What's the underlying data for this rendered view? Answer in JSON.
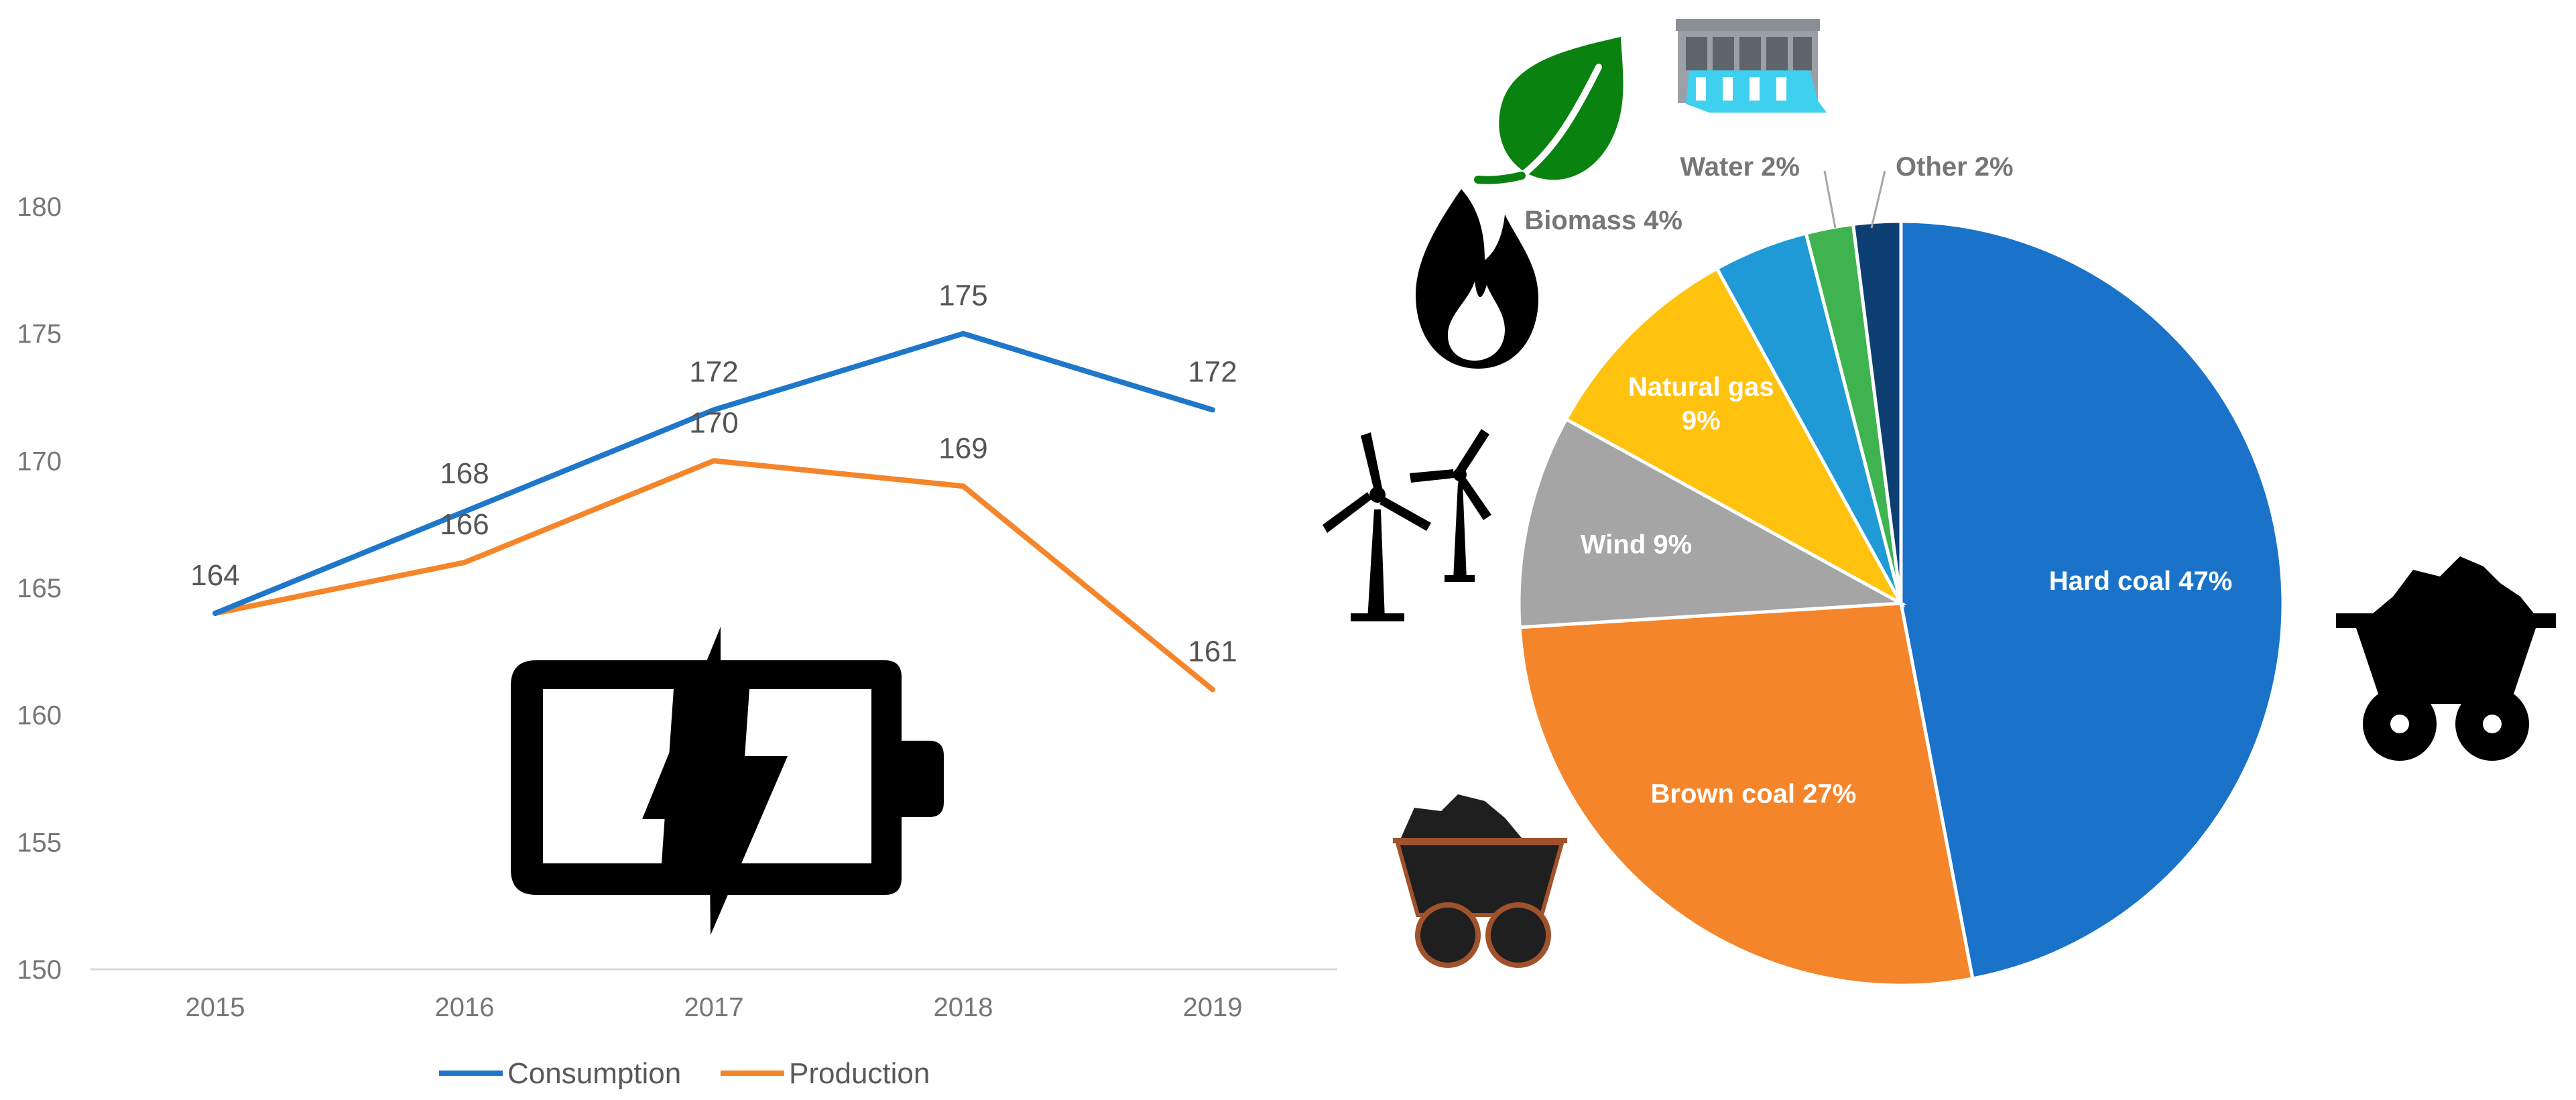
{
  "chart_data": [
    {
      "type": "line",
      "title": "",
      "xlabel": "",
      "ylabel": "",
      "categories": [
        "2015",
        "2016",
        "2017",
        "2018",
        "2019"
      ],
      "yticks": [
        "150",
        "155",
        "160",
        "165",
        "170",
        "175",
        "180"
      ],
      "ylim": [
        150,
        180
      ],
      "grid": false,
      "legend_position": "bottom",
      "series": [
        {
          "name": "Consumption",
          "color": "#1f77c9",
          "values": [
            164,
            168,
            172,
            175,
            172
          ]
        },
        {
          "name": "Production",
          "color": "#f5852a",
          "values": [
            164,
            166,
            170,
            169,
            161
          ]
        }
      ]
    },
    {
      "type": "pie",
      "title": "",
      "slices": [
        {
          "label": "Hard coal",
          "display": "Hard coal 47%",
          "value": 47,
          "color": "#1a73c9",
          "label_color": "#ffffff"
        },
        {
          "label": "Brown coal",
          "display": "Brown coal 27%",
          "value": 27,
          "color": "#f5852a",
          "label_color": "#ffffff"
        },
        {
          "label": "Wind",
          "display": "Wind 9%",
          "value": 9,
          "color": "#a5a5a5",
          "label_color": "#ffffff"
        },
        {
          "label": "Natural gas",
          "display": [
            "Natural gas",
            "9%"
          ],
          "value": 9,
          "color": "#ffc20e",
          "label_color": "#ffffff"
        },
        {
          "label": "Biomass",
          "display": "Biomass 4%",
          "value": 4,
          "color": "#1f9ad6",
          "label_color": "#767676"
        },
        {
          "label": "Water",
          "display": "Water 2%",
          "value": 2,
          "color": "#3fb34f",
          "label_color": "#767676"
        },
        {
          "label": "Other",
          "display": "Other 2%",
          "value": 2,
          "color": "#0d3f73",
          "label_color": "#767676"
        }
      ]
    }
  ],
  "icons": [
    "battery-charging-icon",
    "leaf-icon",
    "dam-icon",
    "flame-icon",
    "wind-turbines-icon",
    "coal-cart-icon",
    "brown-coal-cart-icon"
  ]
}
